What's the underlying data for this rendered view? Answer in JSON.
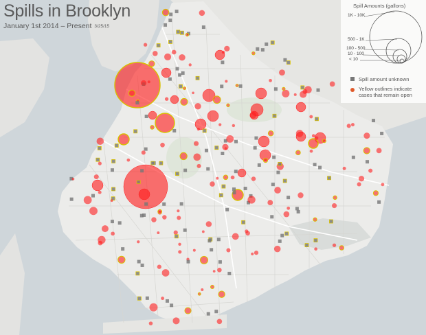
{
  "title": "Spills in Brooklyn",
  "subtitle": "January 1st 2014 – Present",
  "as_of_date": "3/25/15",
  "legend": {
    "title": "Spill Amounts (gallons)",
    "levels": [
      "1K - 10K",
      "500 - 1K",
      "100 - 500",
      "10 - 100",
      "< 10"
    ],
    "unknown_label": "Spill amount unknown",
    "open_label_line1": "Yellow outlines indicate",
    "open_label_line2": "cases that remain open"
  },
  "colors": {
    "spill": "#ff1e1e",
    "open_outline": "#d8c000",
    "unknown": "#777777",
    "water": "#cfd6da",
    "land": "#ececea"
  }
}
